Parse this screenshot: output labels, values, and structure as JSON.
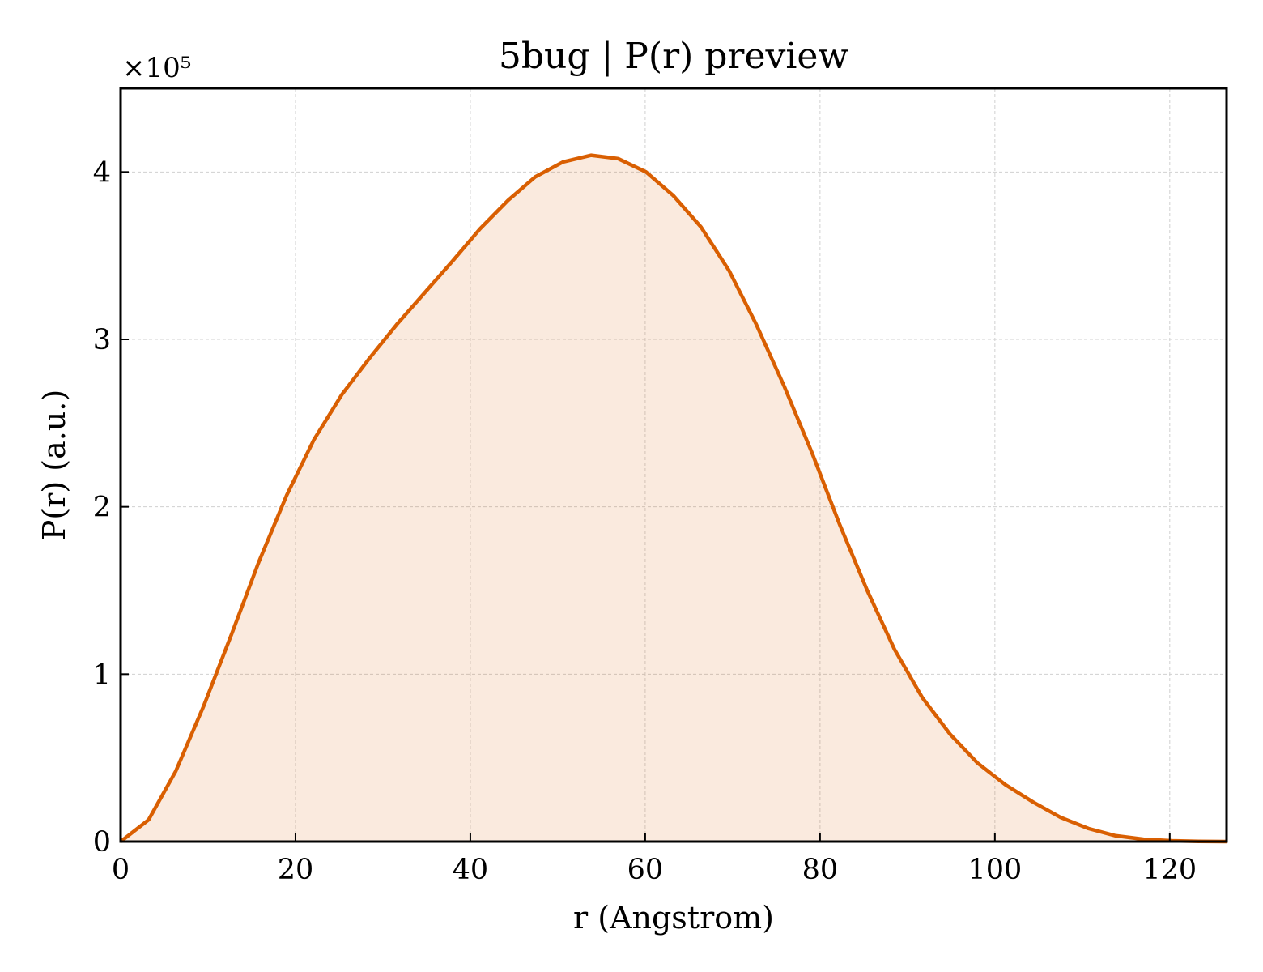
{
  "chart_data": {
    "type": "area",
    "title": "5bug | P(r) preview",
    "xlabel": "r (Angstrom)",
    "ylabel": "P(r) (a.u.)",
    "y_multiplier_label": "×10⁵",
    "y_scale_factor": 100000,
    "xlim": [
      0,
      126.5
    ],
    "ylim": [
      0,
      450000
    ],
    "xticks": [
      0,
      20,
      40,
      60,
      80,
      100,
      120
    ],
    "xtick_labels": [
      "0",
      "20",
      "40",
      "60",
      "80",
      "100",
      "120"
    ],
    "yticks": [
      0,
      100000,
      200000,
      300000,
      400000
    ],
    "ytick_labels": [
      "0",
      "1",
      "2",
      "3",
      "4"
    ],
    "grid": true,
    "legend": "none",
    "color": "#d95f02",
    "series": [
      {
        "x": [
          0,
          3.2,
          6.3,
          9.5,
          12.7,
          15.8,
          19.0,
          22.1,
          25.3,
          28.5,
          31.6,
          34.8,
          38.0,
          41.1,
          44.3,
          47.4,
          50.6,
          53.8,
          56.9,
          60.1,
          63.2,
          66.4,
          69.6,
          72.7,
          75.9,
          79.1,
          82.2,
          85.4,
          88.5,
          91.7,
          94.9,
          98.0,
          101.2,
          104.4,
          107.5,
          110.7,
          113.8,
          117.0,
          120.2,
          123.3,
          126.5
        ],
        "y": [
          0,
          13000,
          42000,
          81000,
          124000,
          167000,
          207000,
          240000,
          267000,
          289000,
          309000,
          328000,
          347000,
          366000,
          383000,
          397000,
          406000,
          410000,
          408000,
          400000,
          386000,
          367000,
          341000,
          309000,
          272000,
          232000,
          190000,
          150000,
          115000,
          86000,
          64000,
          47000,
          34000,
          23500,
          14500,
          7800,
          3500,
          1400,
          500,
          150,
          0
        ]
      }
    ]
  }
}
